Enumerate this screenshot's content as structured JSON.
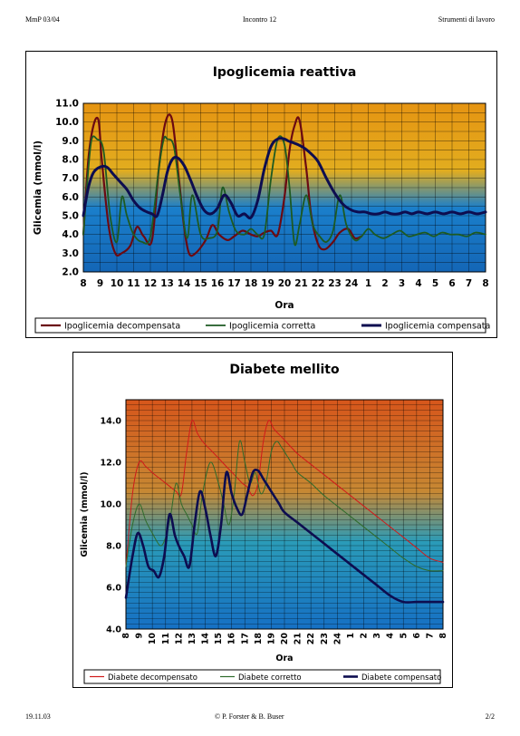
{
  "header": {
    "left": "MmP 03/04",
    "center": "Incontro 12",
    "right": "Strumenti di lavoro"
  },
  "footer": {
    "left": "19.11.03",
    "center": "© P. Forster & B. Buser",
    "right": "2/2"
  },
  "chart_data": [
    {
      "type": "line",
      "title": "Ipoglicemia reattiva",
      "xlabel": "Ora",
      "ylabel": "Glicemia (mmol/l)",
      "ylim": [
        2.0,
        11.0
      ],
      "yticks": [
        "2.0",
        "3.0",
        "4.0",
        "5.0",
        "6.0",
        "7.0",
        "8.0",
        "9.0",
        "10.0",
        "11.0"
      ],
      "categories": [
        "8",
        "9",
        "10",
        "11",
        "12",
        "13",
        "14",
        "15",
        "16",
        "17",
        "18",
        "19",
        "20",
        "21",
        "22",
        "23",
        "24",
        "1",
        "2",
        "3",
        "4",
        "5",
        "6",
        "7",
        "8"
      ],
      "grid": true,
      "legend": "bottom",
      "background_gradient": [
        "#e59412",
        "#e2ad1f",
        "#1a7fcb",
        "#1466b6"
      ],
      "series": [
        {
          "name": "Ipoglicemia decompensata",
          "color": "#6b0a12",
          "width": 2.2,
          "x": [
            0,
            0.3,
            0.6,
            0.9,
            1.1,
            1.5,
            1.9,
            2.3,
            2.8,
            3.2,
            3.6,
            4.1,
            4.5,
            4.9,
            5.3,
            5.7,
            6.0,
            6.3,
            6.7,
            7.3,
            7.7,
            8.1,
            8.6,
            9.0,
            9.5,
            10.0,
            10.4,
            10.8,
            11.2,
            11.6,
            12.0,
            12.3,
            12.6,
            12.9,
            13.3,
            13.6,
            14.0,
            14.4,
            14.9,
            15.3,
            15.8,
            16.2,
            16.6
          ],
          "y": [
            4.0,
            8.0,
            9.8,
            10.1,
            8.0,
            4.5,
            3.0,
            3.0,
            3.4,
            4.4,
            3.9,
            3.7,
            7.5,
            10.0,
            10.1,
            7.0,
            4.5,
            3.0,
            3.0,
            3.7,
            4.5,
            4.0,
            3.7,
            3.9,
            4.2,
            4.0,
            3.9,
            4.1,
            4.2,
            4.0,
            6.0,
            8.5,
            9.8,
            10.1,
            7.5,
            5.0,
            3.5,
            3.2,
            3.6,
            4.1,
            4.3,
            3.8,
            3.9
          ]
        },
        {
          "name": "Ipoglicemia corretta",
          "color": "#1d5a22",
          "width": 1.8,
          "x": [
            0,
            0.3,
            0.5,
            0.8,
            1.2,
            1.6,
            2.0,
            2.3,
            2.6,
            3.0,
            3.5,
            4.0,
            4.5,
            4.8,
            5.0,
            5.4,
            5.8,
            6.2,
            6.5,
            7.0,
            7.5,
            8.0,
            8.3,
            8.7,
            9.1,
            9.6,
            10.0,
            10.4,
            10.8,
            11.2,
            11.6,
            12.0,
            12.3,
            12.6,
            12.9,
            13.3,
            13.7,
            14.1,
            14.5,
            14.9,
            15.3,
            15.7,
            16.2,
            16.6,
            17.0,
            17.4,
            17.9,
            18.4,
            18.9,
            19.4,
            19.9,
            20.4,
            20.9,
            21.4,
            21.9,
            22.4,
            22.9,
            23.4,
            24.0
          ],
          "y": [
            4.0,
            7.5,
            9.1,
            9.1,
            8.5,
            5.0,
            3.6,
            6.0,
            5.0,
            4.0,
            3.6,
            3.9,
            7.5,
            9.1,
            9.1,
            8.7,
            6.0,
            3.8,
            6.1,
            4.0,
            3.8,
            4.2,
            6.5,
            5.2,
            4.2,
            4.0,
            4.3,
            4.0,
            4.0,
            7.0,
            9.1,
            8.8,
            6.5,
            3.5,
            4.5,
            6.1,
            4.5,
            3.9,
            3.6,
            4.2,
            6.1,
            4.5,
            3.7,
            3.9,
            4.3,
            4.0,
            3.8,
            4.0,
            4.2,
            3.9,
            4.0,
            4.1,
            3.9,
            4.1,
            4.0,
            4.0,
            3.9,
            4.1,
            4.0
          ]
        },
        {
          "name": "Ipoglicemia compensata",
          "color": "#0d0d50",
          "width": 3.0,
          "x": [
            0,
            0.3,
            0.6,
            1.0,
            1.4,
            1.8,
            2.2,
            2.6,
            3.0,
            3.4,
            3.8,
            4.1,
            4.4,
            4.7,
            5.0,
            5.3,
            5.6,
            6.0,
            6.4,
            6.8,
            7.2,
            7.6,
            8.0,
            8.4,
            8.8,
            9.2,
            9.6,
            10.0,
            10.4,
            10.8,
            11.2,
            11.6,
            12.0,
            12.2,
            12.5,
            12.8,
            13.2,
            13.6,
            14.0,
            14.5,
            15.0,
            15.5,
            16.0,
            16.4,
            16.8,
            17.2,
            17.6,
            18.0,
            18.4,
            18.8,
            19.2,
            19.6,
            20.0,
            20.5,
            21.0,
            21.5,
            22.0,
            22.5,
            23.0,
            23.5,
            24.0
          ],
          "y": [
            5.0,
            6.5,
            7.3,
            7.6,
            7.6,
            7.2,
            6.8,
            6.4,
            5.8,
            5.4,
            5.2,
            5.1,
            5.0,
            6.0,
            7.3,
            8.0,
            8.1,
            7.7,
            6.9,
            6.0,
            5.3,
            5.1,
            5.4,
            6.1,
            5.7,
            5.0,
            5.1,
            4.9,
            5.8,
            7.5,
            8.7,
            9.1,
            9.1,
            9.0,
            8.9,
            8.8,
            8.6,
            8.3,
            7.9,
            7.0,
            6.2,
            5.6,
            5.3,
            5.2,
            5.2,
            5.1,
            5.1,
            5.2,
            5.1,
            5.1,
            5.2,
            5.1,
            5.2,
            5.1,
            5.2,
            5.1,
            5.2,
            5.1,
            5.2,
            5.1,
            5.2
          ]
        }
      ]
    },
    {
      "type": "line",
      "title": "Diabete mellito",
      "xlabel": "Ora",
      "ylabel": "Glicemia (mmol/l)",
      "ylim": [
        4.0,
        15.0
      ],
      "yticks": [
        "4.0",
        "6.0",
        "8.0",
        "10.0",
        "12.0",
        "14.0"
      ],
      "categories": [
        "8",
        "9",
        "10",
        "11",
        "12",
        "13",
        "14",
        "15",
        "16",
        "17",
        "18",
        "19",
        "20",
        "21",
        "22",
        "23",
        "24",
        "1",
        "2",
        "3",
        "4",
        "5",
        "6",
        "7",
        "8"
      ],
      "grid": true,
      "legend": "bottom",
      "background_gradient": [
        "#d6561b",
        "#c78833",
        "#2a9bb8",
        "#1670c4"
      ],
      "series": [
        {
          "name": "Diabete decompensato",
          "color": "#d11a1a",
          "width": 1.0,
          "x": [
            0,
            0.5,
            1.0,
            1.5,
            2.0,
            2.6,
            3.2,
            3.8,
            4.2,
            4.6,
            5.0,
            5.4,
            5.8,
            6.4,
            7.0,
            7.6,
            8.2,
            8.8,
            9.2,
            9.6,
            10.0,
            10.4,
            10.8,
            11.2,
            11.8,
            12.4,
            13,
            14,
            15,
            16,
            17,
            18,
            19,
            20,
            21,
            22,
            23,
            24
          ],
          "y": [
            7.0,
            10.5,
            12.0,
            11.8,
            11.5,
            11.2,
            10.9,
            10.6,
            10.5,
            12.5,
            14.0,
            13.4,
            13.0,
            12.6,
            12.2,
            11.8,
            11.4,
            11.0,
            10.8,
            10.4,
            11.0,
            13.0,
            14.0,
            13.6,
            13.2,
            12.8,
            12.4,
            11.9,
            11.4,
            10.9,
            10.4,
            9.9,
            9.4,
            8.9,
            8.4,
            7.9,
            7.4,
            7.2
          ]
        },
        {
          "name": "Diabete corretto",
          "color": "#2f6b2b",
          "width": 1.0,
          "x": [
            0,
            0.5,
            1.0,
            1.5,
            2.0,
            2.6,
            3.0,
            3.4,
            3.8,
            4.2,
            4.6,
            5.0,
            5.4,
            5.8,
            6.4,
            7.0,
            7.4,
            7.8,
            8.2,
            8.6,
            9.0,
            9.4,
            9.8,
            10.2,
            10.6,
            11.0,
            11.4,
            11.8,
            12.2,
            12.6,
            13,
            14,
            15,
            16,
            17,
            18,
            19,
            20,
            21,
            22,
            23,
            24
          ],
          "y": [
            7.0,
            9.0,
            10.0,
            9.2,
            8.6,
            8.0,
            8.4,
            9.5,
            11.0,
            10.0,
            9.5,
            9.0,
            8.6,
            10.5,
            12.0,
            11.0,
            10.0,
            9.0,
            10.5,
            13.0,
            12.0,
            11.0,
            11.5,
            10.5,
            11.0,
            12.5,
            13.0,
            12.7,
            12.3,
            11.9,
            11.5,
            11.0,
            10.4,
            9.9,
            9.4,
            8.9,
            8.4,
            7.9,
            7.4,
            7.0,
            6.8,
            6.8
          ]
        },
        {
          "name": "Diabete compensato",
          "color": "#0d0d50",
          "width": 2.6,
          "x": [
            0,
            0.5,
            0.9,
            1.3,
            1.7,
            2.1,
            2.5,
            2.9,
            3.3,
            3.7,
            4.0,
            4.4,
            4.8,
            5.2,
            5.6,
            6.0,
            6.4,
            6.8,
            7.2,
            7.6,
            8.0,
            8.4,
            8.8,
            9.2,
            9.6,
            10.0,
            10.4,
            10.8,
            11.2,
            11.6,
            12,
            13,
            14,
            15,
            16,
            17,
            18,
            19,
            20,
            21,
            22,
            23,
            24
          ],
          "y": [
            5.5,
            7.5,
            8.6,
            8.0,
            7.0,
            6.8,
            6.5,
            7.5,
            9.5,
            8.5,
            8.0,
            7.5,
            7.0,
            9.0,
            10.6,
            9.8,
            8.5,
            7.5,
            9.0,
            11.5,
            10.5,
            9.8,
            9.5,
            10.5,
            11.5,
            11.6,
            11.2,
            10.8,
            10.4,
            10.0,
            9.6,
            9.1,
            8.6,
            8.1,
            7.6,
            7.1,
            6.6,
            6.1,
            5.6,
            5.3,
            5.3,
            5.3,
            5.3
          ]
        }
      ]
    }
  ]
}
